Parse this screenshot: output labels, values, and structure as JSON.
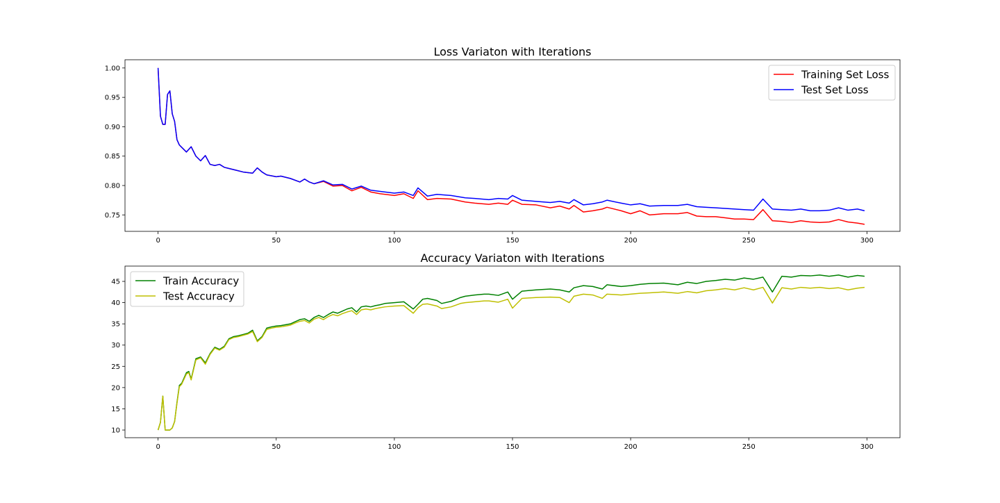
{
  "chart_data": [
    {
      "type": "line",
      "title": "Loss Variaton with Iterations",
      "xlabel": "",
      "ylabel": "",
      "xlim": [
        -14,
        314
      ],
      "ylim": [
        0.722,
        1.014
      ],
      "xticks": [
        "0",
        "50",
        "100",
        "150",
        "200",
        "250",
        "300"
      ],
      "yticks": [
        "0.75",
        "0.80",
        "0.85",
        "0.90",
        "0.95",
        "1.00"
      ],
      "grid": false,
      "legend": "upper right",
      "series": [
        {
          "name": "Training Set Loss",
          "color": "#ff0000",
          "x": [
            0,
            1,
            2,
            3,
            4,
            5,
            6,
            7,
            8,
            9,
            10,
            12,
            14,
            16,
            18,
            20,
            22,
            24,
            26,
            28,
            30,
            33,
            36,
            40,
            42,
            44,
            46,
            50,
            52,
            56,
            60,
            62,
            64,
            66,
            70,
            74,
            78,
            82,
            86,
            90,
            94,
            100,
            104,
            108,
            110,
            114,
            118,
            124,
            130,
            134,
            140,
            144,
            148,
            150,
            154,
            160,
            166,
            170,
            174,
            176,
            180,
            184,
            188,
            190,
            196,
            200,
            204,
            208,
            214,
            220,
            224,
            228,
            232,
            236,
            240,
            244,
            248,
            252,
            256,
            260,
            264,
            268,
            272,
            276,
            280,
            284,
            288,
            292,
            296,
            299
          ],
          "y": [
            1.0,
            0.918,
            0.904,
            0.904,
            0.955,
            0.961,
            0.922,
            0.909,
            0.878,
            0.869,
            0.865,
            0.857,
            0.866,
            0.85,
            0.842,
            0.851,
            0.836,
            0.834,
            0.836,
            0.831,
            0.829,
            0.826,
            0.823,
            0.821,
            0.83,
            0.823,
            0.818,
            0.815,
            0.816,
            0.812,
            0.806,
            0.811,
            0.806,
            0.803,
            0.807,
            0.799,
            0.8,
            0.791,
            0.797,
            0.789,
            0.786,
            0.783,
            0.786,
            0.778,
            0.791,
            0.776,
            0.778,
            0.777,
            0.772,
            0.77,
            0.768,
            0.77,
            0.768,
            0.775,
            0.768,
            0.767,
            0.762,
            0.765,
            0.76,
            0.766,
            0.755,
            0.757,
            0.76,
            0.763,
            0.757,
            0.752,
            0.757,
            0.75,
            0.752,
            0.752,
            0.754,
            0.748,
            0.747,
            0.747,
            0.745,
            0.743,
            0.743,
            0.742,
            0.759,
            0.74,
            0.739,
            0.737,
            0.74,
            0.738,
            0.737,
            0.738,
            0.742,
            0.738,
            0.736,
            0.734
          ]
        },
        {
          "name": "Test Set Loss",
          "color": "#0000ff",
          "x": [
            0,
            1,
            2,
            3,
            4,
            5,
            6,
            7,
            8,
            9,
            10,
            12,
            14,
            16,
            18,
            20,
            22,
            24,
            26,
            28,
            30,
            33,
            36,
            40,
            42,
            44,
            46,
            50,
            52,
            56,
            60,
            62,
            64,
            66,
            70,
            74,
            78,
            82,
            86,
            90,
            94,
            100,
            104,
            108,
            110,
            114,
            118,
            124,
            130,
            134,
            140,
            144,
            148,
            150,
            154,
            160,
            166,
            170,
            174,
            176,
            180,
            184,
            188,
            190,
            196,
            200,
            204,
            208,
            214,
            220,
            224,
            228,
            232,
            236,
            240,
            244,
            248,
            252,
            256,
            260,
            264,
            268,
            272,
            276,
            280,
            284,
            288,
            292,
            296,
            299
          ],
          "y": [
            1.0,
            0.918,
            0.904,
            0.904,
            0.955,
            0.961,
            0.922,
            0.909,
            0.878,
            0.869,
            0.865,
            0.857,
            0.866,
            0.85,
            0.842,
            0.851,
            0.836,
            0.834,
            0.836,
            0.831,
            0.829,
            0.826,
            0.823,
            0.821,
            0.83,
            0.823,
            0.818,
            0.815,
            0.816,
            0.812,
            0.806,
            0.811,
            0.806,
            0.803,
            0.808,
            0.801,
            0.802,
            0.794,
            0.799,
            0.792,
            0.79,
            0.787,
            0.789,
            0.783,
            0.796,
            0.782,
            0.785,
            0.783,
            0.779,
            0.778,
            0.776,
            0.778,
            0.777,
            0.783,
            0.775,
            0.773,
            0.771,
            0.773,
            0.77,
            0.776,
            0.767,
            0.769,
            0.772,
            0.775,
            0.77,
            0.767,
            0.769,
            0.765,
            0.766,
            0.766,
            0.768,
            0.764,
            0.763,
            0.762,
            0.761,
            0.76,
            0.759,
            0.758,
            0.777,
            0.76,
            0.759,
            0.758,
            0.76,
            0.757,
            0.757,
            0.758,
            0.762,
            0.758,
            0.76,
            0.757
          ]
        }
      ]
    },
    {
      "type": "line",
      "title": "Accuracy Variaton with Iterations",
      "xlabel": "",
      "ylabel": "",
      "xlim": [
        -14,
        314
      ],
      "ylim": [
        8.2,
        48.6
      ],
      "xticks": [
        "0",
        "50",
        "100",
        "150",
        "200",
        "250",
        "300"
      ],
      "yticks": [
        "10",
        "15",
        "20",
        "25",
        "30",
        "35",
        "40",
        "45"
      ],
      "grid": false,
      "legend": "upper left",
      "series": [
        {
          "name": "Train Accuracy",
          "color": "#008000",
          "x": [
            0,
            1,
            2,
            3,
            4,
            5,
            6,
            7,
            8,
            9,
            10,
            12,
            13,
            14,
            16,
            18,
            20,
            22,
            24,
            26,
            28,
            30,
            32,
            34,
            36,
            38,
            40,
            42,
            44,
            46,
            48,
            50,
            52,
            54,
            56,
            58,
            60,
            62,
            64,
            66,
            68,
            70,
            72,
            74,
            76,
            78,
            80,
            82,
            84,
            86,
            88,
            90,
            92,
            94,
            96,
            100,
            104,
            108,
            110,
            112,
            114,
            118,
            120,
            124,
            128,
            130,
            134,
            138,
            140,
            144,
            148,
            150,
            154,
            160,
            166,
            170,
            174,
            176,
            180,
            184,
            188,
            190,
            196,
            200,
            204,
            208,
            214,
            220,
            224,
            228,
            232,
            236,
            240,
            244,
            248,
            252,
            256,
            260,
            264,
            268,
            272,
            276,
            280,
            284,
            288,
            292,
            296,
            299
          ],
          "y": [
            10.0,
            11.8,
            18.0,
            10.0,
            10.0,
            10.0,
            10.5,
            12.0,
            16.5,
            20.5,
            21.0,
            23.5,
            23.8,
            22.0,
            26.8,
            27.2,
            25.8,
            28.0,
            29.5,
            29.0,
            29.7,
            31.5,
            32.0,
            32.2,
            32.5,
            32.8,
            33.5,
            31.0,
            32.0,
            34.0,
            34.3,
            34.5,
            34.6,
            34.8,
            35.0,
            35.5,
            36.0,
            36.2,
            35.6,
            36.5,
            37.0,
            36.5,
            37.2,
            37.8,
            37.5,
            38.0,
            38.5,
            38.8,
            37.8,
            39.0,
            39.2,
            39.0,
            39.3,
            39.5,
            39.8,
            40.0,
            40.2,
            38.5,
            39.6,
            40.8,
            41.0,
            40.5,
            39.8,
            40.3,
            41.2,
            41.5,
            41.8,
            42.0,
            42.0,
            41.7,
            42.5,
            40.8,
            42.7,
            43.0,
            43.2,
            43.0,
            42.5,
            43.5,
            44.0,
            43.8,
            43.2,
            44.2,
            43.8,
            44.0,
            44.3,
            44.5,
            44.6,
            44.2,
            44.8,
            44.5,
            45.0,
            45.2,
            45.5,
            45.3,
            45.8,
            45.5,
            46.0,
            42.5,
            46.2,
            46.0,
            46.4,
            46.3,
            46.5,
            46.2,
            46.5,
            46.0,
            46.4,
            46.2
          ]
        },
        {
          "name": "Test Accuracy",
          "color": "#bfbf00",
          "x": [
            0,
            1,
            2,
            3,
            4,
            5,
            6,
            7,
            8,
            9,
            10,
            12,
            13,
            14,
            16,
            18,
            20,
            22,
            24,
            26,
            28,
            30,
            32,
            34,
            36,
            38,
            40,
            42,
            44,
            46,
            48,
            50,
            52,
            54,
            56,
            58,
            60,
            62,
            64,
            66,
            68,
            70,
            72,
            74,
            76,
            78,
            80,
            82,
            84,
            86,
            88,
            90,
            92,
            94,
            96,
            100,
            104,
            108,
            110,
            112,
            114,
            118,
            120,
            124,
            128,
            130,
            134,
            138,
            140,
            144,
            148,
            150,
            154,
            160,
            166,
            170,
            174,
            176,
            180,
            184,
            188,
            190,
            196,
            200,
            204,
            208,
            214,
            220,
            224,
            228,
            232,
            236,
            240,
            244,
            248,
            252,
            256,
            260,
            264,
            268,
            272,
            276,
            280,
            284,
            288,
            292,
            296,
            299
          ],
          "y": [
            10.0,
            11.8,
            18.0,
            10.0,
            10.0,
            10.0,
            10.5,
            12.0,
            16.3,
            20.2,
            20.8,
            23.2,
            23.5,
            21.8,
            26.5,
            27.0,
            25.5,
            27.8,
            29.3,
            28.8,
            29.5,
            31.3,
            31.8,
            32.0,
            32.3,
            32.6,
            33.2,
            30.8,
            31.8,
            33.7,
            34.0,
            34.2,
            34.3,
            34.5,
            34.7,
            35.2,
            35.6,
            35.8,
            35.2,
            36.1,
            36.5,
            36.0,
            36.7,
            37.2,
            36.9,
            37.4,
            37.8,
            38.1,
            37.2,
            38.3,
            38.5,
            38.3,
            38.6,
            38.8,
            39.0,
            39.2,
            39.3,
            37.5,
            38.8,
            39.6,
            39.7,
            39.2,
            38.6,
            39.0,
            39.8,
            40.0,
            40.2,
            40.4,
            40.4,
            40.1,
            40.8,
            38.7,
            41.0,
            41.2,
            41.3,
            41.2,
            40.0,
            41.5,
            42.0,
            41.8,
            41.0,
            42.0,
            41.8,
            42.0,
            42.2,
            42.3,
            42.5,
            42.2,
            42.6,
            42.3,
            42.8,
            43.0,
            43.3,
            43.0,
            43.5,
            43.0,
            43.6,
            39.9,
            43.5,
            43.2,
            43.6,
            43.4,
            43.6,
            43.3,
            43.5,
            43.0,
            43.4,
            43.6
          ]
        }
      ]
    }
  ]
}
